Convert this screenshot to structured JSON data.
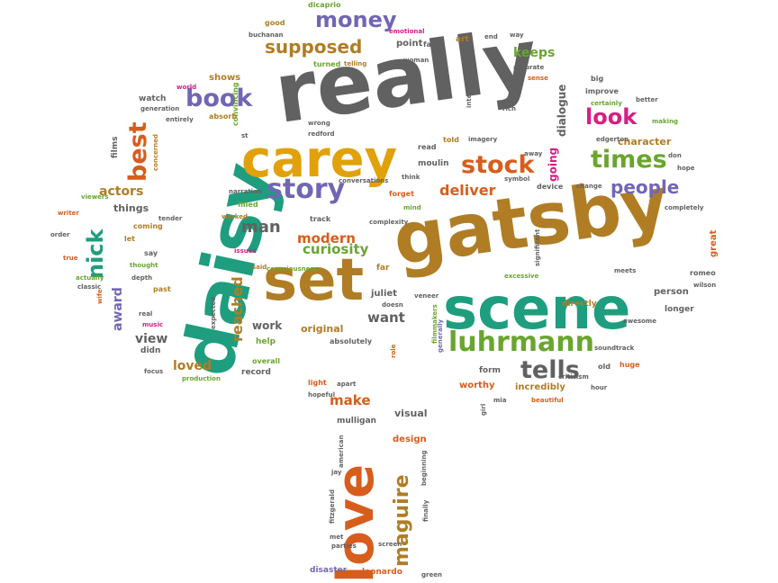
{
  "words": {
    "really": "really",
    "gatsby": "gatsby",
    "daisy": "daisy",
    "scene": "scene",
    "set": "set",
    "carey": "carey",
    "love": "love",
    "luhrmann": "luhrmann",
    "story": "story",
    "stock": "stock",
    "times": "times",
    "money": "money",
    "supposed": "supposed",
    "book": "book",
    "best": "best",
    "nick": "nick",
    "maguire": "maguire",
    "tells": "tells",
    "look": "look",
    "people": "people",
    "deliver": "deliver",
    "modern": "modern",
    "man": "man",
    "curiosity": "curiosity",
    "reached": "reached",
    "keeps": "keeps",
    "dialogue": "dialogue",
    "going": "going",
    "character": "character",
    "make": "make",
    "want": "want",
    "award": "award",
    "actors": "actors",
    "loved": "loved",
    "work": "work",
    "view": "view",
    "visual": "visual",
    "original": "original",
    "things": "things",
    "shows": "shows",
    "point": "point",
    "juliet": "juliet",
    "worthy": "worthy",
    "incredibly": "incredibly",
    "directly": "directly",
    "person": "person",
    "form": "form",
    "great": "great",
    "longer": "longer",
    "design": "design",
    "mulligan": "mulligan",
    "leonardo": "leonardo",
    "disaster": "disaster",
    "absolutely": "absolutely",
    "help": "help",
    "didn": "didn",
    "record": "record",
    "overall": "overall",
    "light": "light",
    "apart": "apart",
    "watch": "watch",
    "films": "films",
    "convincing": "convincing",
    "absorb": "absorb",
    "moulin": "moulin",
    "read": "read",
    "told": "told",
    "imagery": "imagery",
    "forget": "forget",
    "device": "device",
    "mind": "mind",
    "track": "track",
    "conversations": "conversations",
    "filled": "filled",
    "narration": "narration",
    "worked": "worked",
    "coming": "coming",
    "let": "let",
    "say": "say",
    "thought": "thought",
    "depth": "depth",
    "past": "past",
    "classic": "classic",
    "actually": "actually",
    "true": "true",
    "order": "order",
    "writer": "writer",
    "viewers": "viewers",
    "concerned": "concerned",
    "tender": "tender",
    "far": "far",
    "issues": "issues",
    "said": "said",
    "consciousness": "consciousness",
    "veneer": "veneer",
    "doesn": "doesn",
    "filmmakers": "filmmakers",
    "excessive": "excessive",
    "generally": "generally",
    "meets": "meets",
    "romeo": "romeo",
    "wilson": "wilson",
    "awesome": "awesome",
    "huge": "huge",
    "old": "old",
    "hour": "hour",
    "criticism": "criticism",
    "beautiful": "beautiful",
    "mia": "mia",
    "girl": "girl",
    "good": "good",
    "dicaprio": "dicaprio",
    "buchanan": "buchanan",
    "emotional": "emotional",
    "far_top": "far",
    "art": "art",
    "end": "end",
    "way": "way",
    "turned": "turned",
    "telling": "telling",
    "woman": "woman",
    "accurate": "accurate",
    "sense": "sense",
    "big": "big",
    "improve": "improve",
    "better": "better",
    "certainly": "certainly",
    "rich": "rich",
    "interested": "interested",
    "making": "making",
    "edgerton": "edgerton",
    "don": "don",
    "hope": "hope",
    "change": "change",
    "completely": "completely",
    "away": "away",
    "symbol": "symbol",
    "think": "think",
    "wrong": "wrong",
    "redford": "redford",
    "st": "st",
    "generation": "generation",
    "entirely": "entirely",
    "world": "world",
    "production": "production",
    "focus": "focus",
    "real": "real",
    "music": "music",
    "expected": "expected",
    "wife": "wife",
    "role": "role",
    "hopeful": "hopeful",
    "complexity": "complexity",
    "soundtrack": "soundtrack",
    "significant": "significant",
    "fitzgerald": "fitzgerald",
    "american": "american",
    "jay": "jay",
    "beginning": "beginning",
    "finally": "finally",
    "met": "met",
    "parties": "parties",
    "screen": "screen",
    "green": "green"
  }
}
